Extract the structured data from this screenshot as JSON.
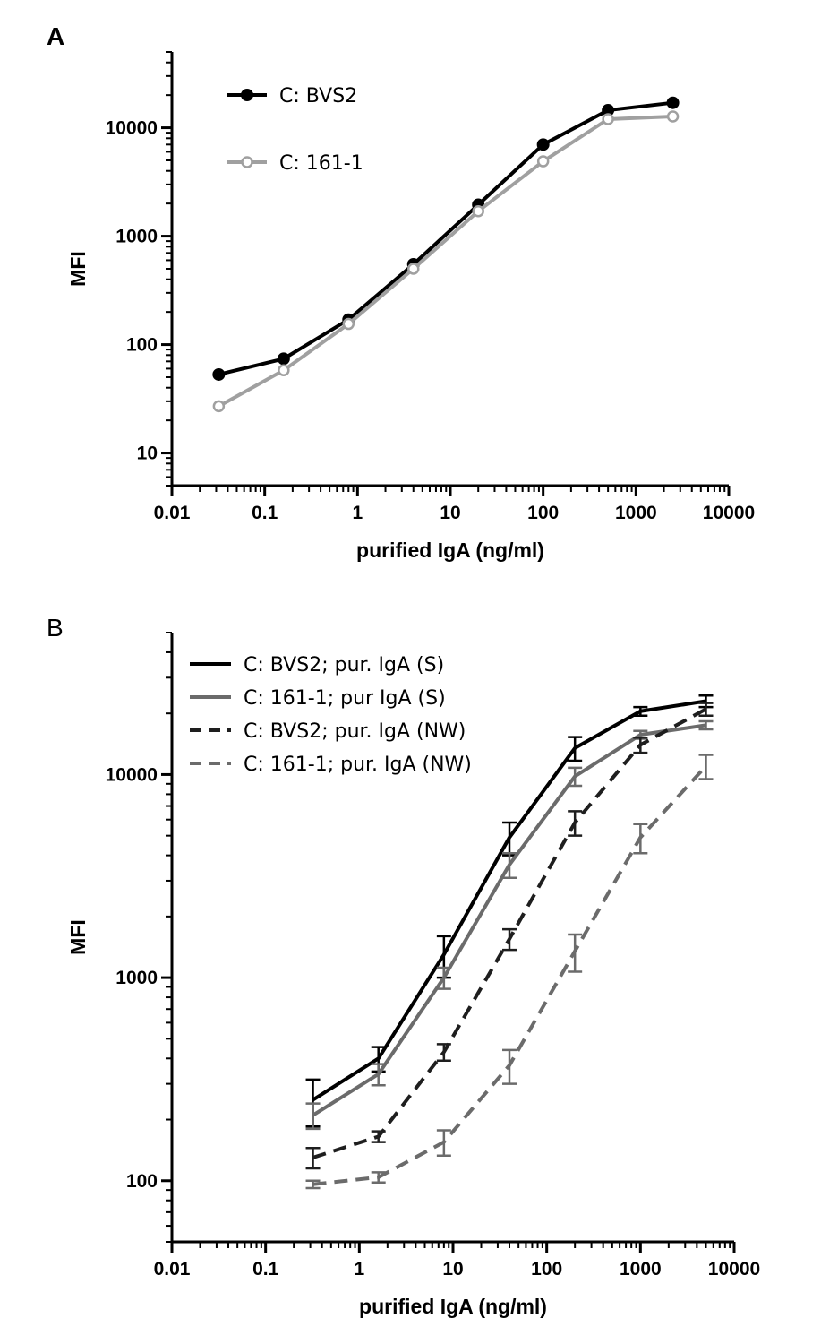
{
  "chart_data": [
    {
      "panel": "A",
      "type": "line",
      "xscale": "log",
      "yscale": "log",
      "xlabel": "purified IgA (ng/ml)",
      "ylabel": "MFI",
      "xlim": [
        0.01,
        10000
      ],
      "ylim": [
        5,
        50000
      ],
      "xticks": [
        0.01,
        0.1,
        1,
        10,
        100,
        1000,
        10000
      ],
      "xtick_labels": [
        "0.01",
        "0.1",
        "1",
        "10",
        "100",
        "1000",
        "10000"
      ],
      "yticks": [
        10,
        100,
        1000,
        10000
      ],
      "ytick_labels": [
        "10",
        "100",
        "1000",
        "10000"
      ],
      "legend_position": "top-left",
      "series": [
        {
          "name": "C: BVS2",
          "color": "#000000",
          "marker": "filled-circle",
          "dash": false,
          "x": [
            0.032,
            0.16,
            0.8,
            4,
            20,
            100,
            500,
            2500
          ],
          "y": [
            53,
            74,
            170,
            550,
            1950,
            7000,
            14500,
            17000
          ]
        },
        {
          "name": "C: 161-1",
          "color": "#a0a0a0",
          "marker": "open-circle",
          "dash": false,
          "x": [
            0.032,
            0.16,
            0.8,
            4,
            20,
            100,
            500,
            2500
          ],
          "y": [
            27,
            58,
            155,
            500,
            1700,
            4900,
            12000,
            12700
          ]
        }
      ]
    },
    {
      "panel": "B",
      "type": "line",
      "xscale": "log",
      "yscale": "log",
      "xlabel": "purified IgA (ng/ml)",
      "ylabel": "MFI",
      "xlim": [
        0.01,
        10000
      ],
      "ylim": [
        50,
        50000
      ],
      "xticks": [
        0.01,
        0.1,
        1,
        10,
        100,
        1000,
        10000
      ],
      "xtick_labels": [
        "0.01",
        "0.1",
        "1",
        "10",
        "100",
        "1000",
        "10000"
      ],
      "yticks": [
        100,
        1000,
        10000
      ],
      "ytick_labels": [
        "100",
        "1000",
        "10000"
      ],
      "legend_position": "top-left",
      "series": [
        {
          "name": "C: BVS2; pur. IgA (S)",
          "color": "#000000",
          "dash": false,
          "x": [
            0.32,
            1.6,
            8,
            40,
            200,
            1000,
            5000
          ],
          "y": [
            250,
            400,
            1300,
            4900,
            13500,
            20500,
            23000
          ],
          "err": [
            65,
            55,
            300,
            900,
            1800,
            1000,
            1500
          ]
        },
        {
          "name": "C: 161-1; pur IgA (S)",
          "color": "#6b6b6b",
          "dash": false,
          "x": [
            0.32,
            1.6,
            8,
            40,
            200,
            1000,
            5000
          ],
          "y": [
            210,
            335,
            1000,
            3600,
            9800,
            15700,
            17500
          ],
          "err": [
            30,
            40,
            120,
            500,
            1000,
            700,
            800
          ]
        },
        {
          "name": "C: BVS2; pur. IgA (NW)",
          "color": "#1e1e1e",
          "dash": true,
          "x": [
            0.32,
            1.6,
            8,
            40,
            200,
            1000,
            5000
          ],
          "y": [
            130,
            165,
            430,
            1550,
            5800,
            14000,
            21000
          ],
          "err": [
            15,
            10,
            40,
            180,
            800,
            1200,
            1500
          ]
        },
        {
          "name": "C: 161-1; pur. IgA (NW)",
          "color": "#6b6b6b",
          "dash": true,
          "x": [
            0.32,
            1.6,
            8,
            40,
            200,
            1000,
            5000
          ],
          "y": [
            96,
            104,
            155,
            370,
            1350,
            4900,
            11000
          ],
          "err": [
            4,
            6,
            22,
            70,
            280,
            800,
            1500
          ]
        }
      ]
    }
  ],
  "panels": {
    "A": {
      "letter": "A"
    },
    "B": {
      "letter": "B"
    }
  }
}
